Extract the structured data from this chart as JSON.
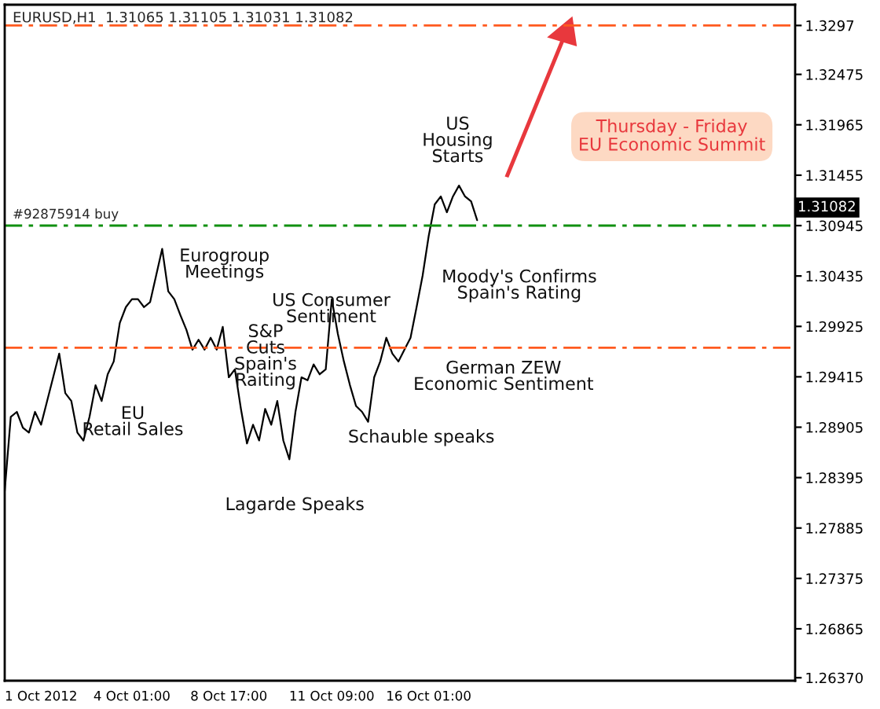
{
  "chart_data": {
    "type": "line",
    "title": "EURUSD,H1  1.31065 1.31105 1.31031 1.31082",
    "categories": [
      null,
      null,
      null,
      null,
      null,
      null,
      "1 Oct 2012",
      null,
      null,
      null,
      null,
      null,
      null,
      null,
      null,
      null,
      null,
      null,
      null,
      null,
      null,
      "4 Oct 01:00",
      null,
      null,
      null,
      null,
      null,
      null,
      null,
      null,
      null,
      null,
      null,
      null,
      null,
      null,
      null,
      "8 Oct 17:00",
      null,
      null,
      null,
      null,
      null,
      null,
      null,
      null,
      null,
      null,
      null,
      null,
      null,
      null,
      null,
      null,
      "11 Oct 09:00",
      null,
      null,
      null,
      null,
      null,
      null,
      null,
      null,
      null,
      null,
      null,
      null,
      null,
      null,
      null,
      "16 Oct 01:00",
      null,
      null,
      null,
      null,
      null,
      null,
      null,
      null,
      null,
      null,
      null,
      null,
      null,
      null,
      null,
      null,
      null,
      null,
      null,
      null,
      null,
      null,
      null,
      null,
      null,
      null,
      null,
      null,
      null,
      null,
      null,
      null,
      null,
      null,
      null,
      null,
      null,
      null,
      null,
      null,
      null,
      null,
      null,
      null,
      null,
      null,
      null,
      null,
      null,
      null,
      null,
      null,
      null,
      null,
      null,
      null,
      null,
      null,
      null,
      null
    ],
    "series": [
      {
        "color": "#000000",
        "values": [
          1.2826,
          1.2901,
          1.2906,
          1.289,
          1.2885,
          1.2906,
          1.2893,
          1.2917,
          1.2941,
          1.2965,
          1.2925,
          1.2917,
          1.2885,
          1.2877,
          1.2901,
          1.2933,
          1.2917,
          1.2944,
          1.2957,
          1.2996,
          1.3012,
          1.302,
          1.302,
          1.3012,
          1.3017,
          1.3044,
          1.3071,
          1.3028,
          1.302,
          1.3004,
          1.2989,
          1.2969,
          1.2979,
          1.2969,
          1.2981,
          1.2969,
          1.2992,
          1.2941,
          1.2949,
          1.2909,
          1.2874,
          1.2893,
          1.2877,
          1.2909,
          1.2893,
          1.2917,
          1.2877,
          1.2858,
          1.2906,
          1.2941,
          1.2938,
          1.2954,
          1.2944,
          1.2949,
          1.302,
          1.2985,
          1.2957,
          1.2933,
          1.2912,
          1.2906,
          1.2896,
          1.2941,
          1.2957,
          1.2981,
          1.2965,
          1.2957,
          1.2969,
          1.2981,
          1.3012,
          1.3044,
          1.3084,
          1.3116,
          1.3124,
          1.3108,
          1.3124,
          1.3135,
          1.3124,
          1.3119,
          1.31,
          null,
          null,
          null,
          null,
          null,
          null,
          null,
          null,
          null,
          null,
          null,
          null,
          null,
          null,
          null,
          null,
          null,
          null,
          null,
          null,
          null,
          null,
          null,
          null,
          null,
          null,
          null,
          null,
          null,
          null,
          null,
          null,
          null,
          null,
          null,
          null,
          null,
          null,
          null,
          null,
          null,
          null,
          null,
          null,
          null,
          null,
          null,
          null,
          null,
          null,
          null,
          null
        ]
      }
    ],
    "ylim": [
      1.2634,
      1.3318
    ],
    "yticks": [
      1.3297,
      {
        "value": 1.32475,
        "label": "1.32475"
      },
      1.31965,
      1.31455,
      1.30945,
      1.30435,
      1.29925,
      1.29415,
      1.28905,
      1.28395,
      1.27885,
      1.27375,
      1.26865,
      {
        "value": 1.2637,
        "label": "1.26370"
      }
    ],
    "ref_lines": [
      {
        "axis": "y",
        "value": 1.3297,
        "color": "#ff5a1f",
        "line_style": "dashed"
      },
      {
        "axis": "y",
        "value": 1.30945,
        "label": "#92875914 buy",
        "color": "#109010",
        "line_style": "dashed"
      },
      {
        "axis": "y",
        "value": 1.2971,
        "color": "#ff5a1f",
        "line_style": "dashed"
      }
    ],
    "annotations": [
      "EU\nRetail Sales",
      "Eurogroup\nMeetings",
      "S&P\nCuts\nSpain's\nRaiting",
      "US Consumer\nSentiment",
      "Lagarde Speaks",
      "Schauble speaks",
      "German ZEW\nEconomic Sentiment",
      "Moody's Confirms\nSpain's Rating",
      "US\nHousing\nStarts",
      "Thursday - Friday\nEU Economic Summit",
      "1.31082"
    ]
  }
}
